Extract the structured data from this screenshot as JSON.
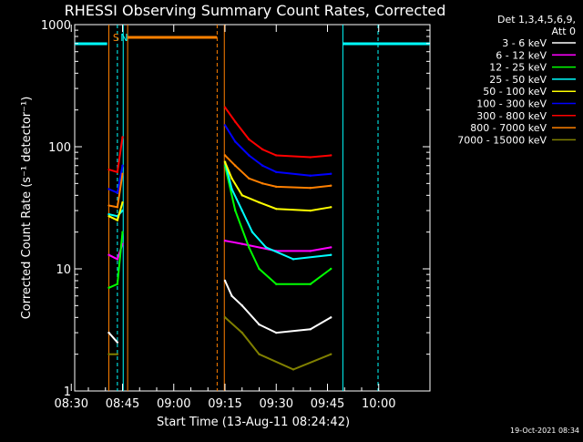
{
  "chart_data": {
    "type": "line",
    "title": "RHESSI Observing Summary Count Rates, Corrected",
    "xlabel": "Start Time (13-Aug-11 08:24:42)",
    "ylabel": "Corrected Count Rate (s⁻¹ detector⁻¹)",
    "y_scale": "log",
    "ylim": [
      1,
      1000
    ],
    "xlim_minutes": [
      1,
      105
    ],
    "x_ticks": [
      {
        "label": "08:30",
        "t": 0
      },
      {
        "label": "08:45",
        "t": 15
      },
      {
        "label": "09:00",
        "t": 30
      },
      {
        "label": "09:15",
        "t": 45
      },
      {
        "label": "09:30",
        "t": 60
      },
      {
        "label": "09:45",
        "t": 75
      },
      {
        "label": "10:00",
        "t": 90
      }
    ],
    "y_ticks": [
      {
        "label": "1",
        "v": 1
      },
      {
        "label": "10",
        "v": 10
      },
      {
        "label": "100",
        "v": 100
      },
      {
        "label": "1000",
        "v": 1000
      }
    ],
    "legend_header": [
      "Det 1,3,4,5,6,9,",
      "Att 0"
    ],
    "legend_position": "right",
    "series": [
      {
        "name": "3 - 6 keV",
        "color": "#ffffff",
        "segments": [
          [
            [
              11,
              3
            ],
            [
              13.5,
              2.5
            ]
          ],
          [
            [
              45,
              8
            ],
            [
              47,
              6
            ],
            [
              50,
              5
            ],
            [
              55,
              3.5
            ],
            [
              60,
              3
            ],
            [
              70,
              3.2
            ],
            [
              76,
              4
            ]
          ]
        ]
      },
      {
        "name": "6 - 12 keV",
        "color": "#ff00ff",
        "segments": [
          [
            [
              11,
              13
            ],
            [
              13.5,
              12
            ],
            [
              15,
              16
            ]
          ],
          [
            [
              45,
              17
            ],
            [
              50,
              16
            ],
            [
              60,
              14
            ],
            [
              70,
              14
            ],
            [
              76,
              15
            ]
          ]
        ]
      },
      {
        "name": "12 - 25 keV",
        "color": "#00ff00",
        "segments": [
          [
            [
              11,
              7
            ],
            [
              13.5,
              7.5
            ],
            [
              15,
              20
            ]
          ],
          [
            [
              45,
              70
            ],
            [
              48,
              30
            ],
            [
              52,
              15
            ],
            [
              55,
              10
            ],
            [
              60,
              7.5
            ],
            [
              70,
              7.5
            ],
            [
              76,
              10
            ]
          ]
        ]
      },
      {
        "name": "25 - 50 keV",
        "color": "#00ffff",
        "segments": [
          [
            [
              11,
              28
            ],
            [
              13.5,
              27
            ],
            [
              15,
              30
            ]
          ],
          [
            [
              45,
              75
            ],
            [
              47,
              45
            ],
            [
              50,
              30
            ],
            [
              53,
              20
            ],
            [
              57,
              15
            ],
            [
              65,
              12
            ],
            [
              76,
              13
            ]
          ]
        ]
      },
      {
        "name": "50 - 100 keV",
        "color": "#ffff00",
        "segments": [
          [
            [
              11,
              27
            ],
            [
              13.5,
              25
            ],
            [
              15,
              35
            ]
          ],
          [
            [
              45,
              75
            ],
            [
              47,
              55
            ],
            [
              50,
              40
            ],
            [
              55,
              35
            ],
            [
              60,
              31
            ],
            [
              70,
              30
            ],
            [
              76,
              32
            ]
          ]
        ]
      },
      {
        "name": "100 - 300 keV",
        "color": "#0000ff",
        "segments": [
          [
            [
              11,
              45
            ],
            [
              13.5,
              42
            ],
            [
              15,
              70
            ]
          ],
          [
            [
              45,
              150
            ],
            [
              48,
              110
            ],
            [
              52,
              85
            ],
            [
              56,
              70
            ],
            [
              60,
              62
            ],
            [
              70,
              58
            ],
            [
              76,
              60
            ]
          ]
        ]
      },
      {
        "name": "300 - 800 keV",
        "color": "#ff0000",
        "segments": [
          [
            [
              11,
              65
            ],
            [
              13.5,
              62
            ],
            [
              15,
              120
            ]
          ],
          [
            [
              45,
              210
            ],
            [
              48,
              160
            ],
            [
              52,
              115
            ],
            [
              56,
              95
            ],
            [
              60,
              85
            ],
            [
              70,
              82
            ],
            [
              76,
              85
            ]
          ]
        ]
      },
      {
        "name": "800 - 7000 keV",
        "color": "#ff8000",
        "segments": [
          [
            [
              11,
              33
            ],
            [
              13.5,
              32
            ],
            [
              15,
              60
            ]
          ],
          [
            [
              45,
              85
            ],
            [
              48,
              70
            ],
            [
              52,
              55
            ],
            [
              56,
              50
            ],
            [
              60,
              47
            ],
            [
              70,
              46
            ],
            [
              76,
              48
            ]
          ]
        ]
      },
      {
        "name": "7000 - 15000 keV",
        "color": "#808000",
        "segments": [
          [
            [
              11,
              2
            ],
            [
              13.5,
              2
            ]
          ],
          [
            [
              45,
              4
            ],
            [
              50,
              3
            ],
            [
              55,
              2
            ],
            [
              65,
              1.5
            ],
            [
              76,
              2
            ]
          ]
        ]
      }
    ],
    "flags": [
      {
        "label": "S",
        "color": "#ff8000"
      },
      {
        "label": "N",
        "color": "#00ffff"
      }
    ],
    "stamp": "19-Oct-2021 08:34"
  }
}
